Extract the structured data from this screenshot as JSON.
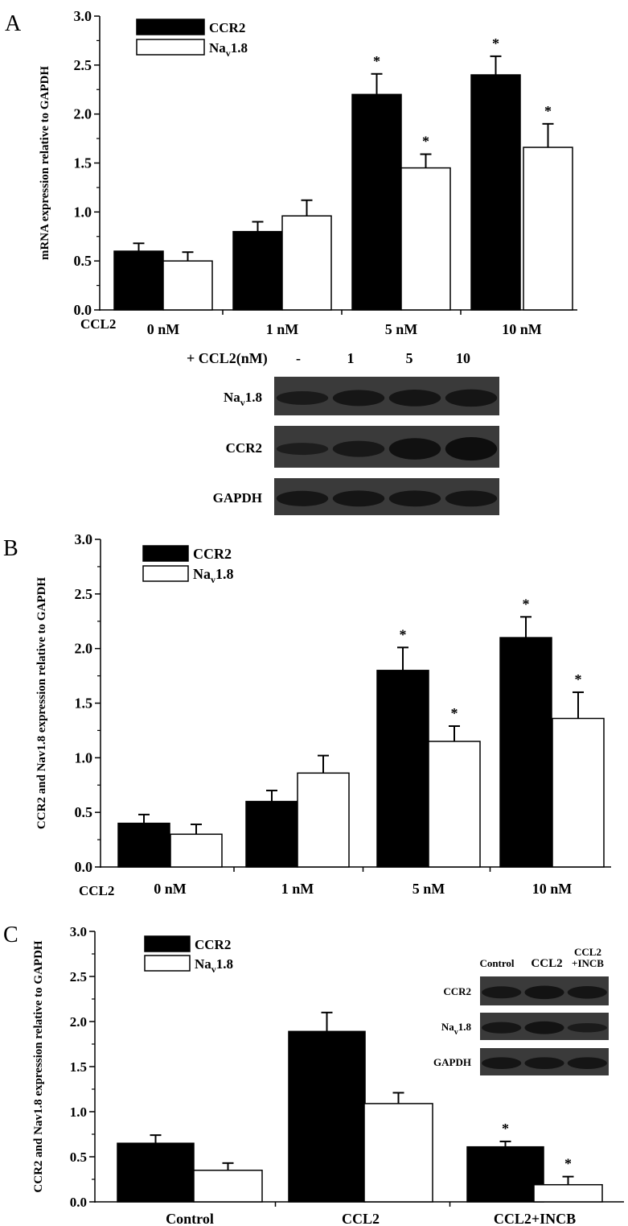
{
  "panels": [
    {
      "letter": "A",
      "chart_data": {
        "type": "bar",
        "ylabel": "mRNA expression relative to GAPDH",
        "ylim": [
          0,
          3.0
        ],
        "yticks": [
          "0.0",
          "0.5",
          "1.0",
          "1.5",
          "2.0",
          "2.5",
          "3.0"
        ],
        "row_label": "CCL2",
        "categories": [
          "0 nM",
          "1 nM",
          "5 nM",
          "10 nM"
        ],
        "series": [
          {
            "name": "CCR2",
            "fill": "#000000",
            "values": [
              0.6,
              0.8,
              2.2,
              2.4
            ],
            "errors": [
              0.08,
              0.1,
              0.21,
              0.19
            ],
            "significant": [
              false,
              false,
              true,
              true
            ]
          },
          {
            "name": "Nav1.8",
            "fill": "#ffffff",
            "values": [
              0.5,
              0.96,
              1.45,
              1.66
            ],
            "errors": [
              0.09,
              0.16,
              0.14,
              0.24
            ],
            "significant": [
              false,
              false,
              true,
              true
            ]
          }
        ],
        "legend_position": "top-left",
        "significance_mark": "*"
      },
      "blot": {
        "header_label": "+ CCL2(nM)",
        "lanes": [
          "-",
          "1",
          "5",
          "10"
        ],
        "rows": [
          "Nav1.8",
          "CCR2",
          "GAPDH"
        ]
      }
    },
    {
      "letter": "B",
      "chart_data": {
        "type": "bar",
        "ylabel": "CCR2 and Nav1.8 expression relative to GAPDH",
        "ylim": [
          0,
          3.0
        ],
        "yticks": [
          "0.0",
          "0.5",
          "1.0",
          "1.5",
          "2.0",
          "2.5",
          "3.0"
        ],
        "row_label": "CCL2",
        "categories": [
          "0 nM",
          "1 nM",
          "5 nM",
          "10 nM"
        ],
        "series": [
          {
            "name": "CCR2",
            "fill": "#000000",
            "values": [
              0.4,
              0.6,
              1.8,
              2.1
            ],
            "errors": [
              0.08,
              0.1,
              0.21,
              0.19
            ],
            "significant": [
              false,
              false,
              true,
              true
            ]
          },
          {
            "name": "Nav1.8",
            "fill": "#ffffff",
            "values": [
              0.3,
              0.86,
              1.15,
              1.36
            ],
            "errors": [
              0.09,
              0.16,
              0.14,
              0.24
            ],
            "significant": [
              false,
              false,
              true,
              true
            ]
          }
        ],
        "legend_position": "top-left",
        "significance_mark": "*"
      }
    },
    {
      "letter": "C",
      "chart_data": {
        "type": "bar",
        "ylabel": "CCR2 and Nav1.8 expression relative to GAPDH",
        "ylim": [
          0,
          3.0
        ],
        "yticks": [
          "0.0",
          "0.5",
          "1.0",
          "1.5",
          "2.0",
          "2.5",
          "3.0"
        ],
        "categories": [
          "Control",
          "CCL2",
          "CCL2+INCB"
        ],
        "series": [
          {
            "name": "CCR2",
            "fill": "#000000",
            "values": [
              0.65,
              1.89,
              0.61
            ],
            "errors": [
              0.09,
              0.21,
              0.06
            ],
            "significant": [
              false,
              false,
              true
            ]
          },
          {
            "name": "Nav1.8",
            "fill": "#ffffff",
            "values": [
              0.35,
              1.09,
              0.19
            ],
            "errors": [
              0.08,
              0.12,
              0.09
            ],
            "significant": [
              false,
              false,
              true
            ]
          }
        ],
        "legend_position": "top-left",
        "significance_mark": "*"
      },
      "blot": {
        "lanes": [
          "Control",
          "CCL2",
          "CCL2\n+INCB"
        ],
        "rows": [
          "CCR2",
          "Nav1.8",
          "GAPDH"
        ]
      }
    }
  ]
}
